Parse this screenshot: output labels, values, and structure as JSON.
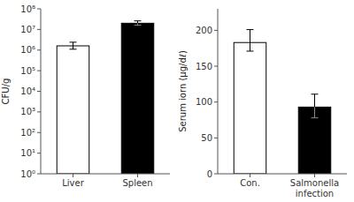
{
  "chart_data": [
    {
      "type": "bar",
      "categories": [
        "Liver",
        "Spleen"
      ],
      "values": [
        1600000,
        20000000
      ],
      "errors_low": [
        500000,
        4000000
      ],
      "errors_high": [
        800000,
        6000000
      ],
      "colors": [
        "white",
        "black"
      ],
      "ylabel": "CFU/g",
      "log": "y",
      "ylim": [
        1.0,
        100000000.0
      ],
      "yticks": [
        {
          "value": 1,
          "label": "10⁰"
        },
        {
          "value": 10,
          "label": "10¹"
        },
        {
          "value": 100,
          "label": "10²"
        },
        {
          "value": 1000,
          "label": "10³"
        },
        {
          "value": 10000,
          "label": "10⁴"
        },
        {
          "value": 100000,
          "label": "10⁵"
        },
        {
          "value": 1000000,
          "label": "10⁶"
        },
        {
          "value": 10000000,
          "label": "10⁷"
        },
        {
          "value": 100000000,
          "label": "10⁸"
        }
      ]
    },
    {
      "type": "bar",
      "categories": [
        "Con.",
        "Salmonella\ninfection"
      ],
      "values": [
        183,
        93
      ],
      "errors_low": [
        12,
        15
      ],
      "errors_high": [
        18,
        18
      ],
      "colors": [
        "white",
        "black"
      ],
      "ylabel": "Serum iorn (μg/dℓ)",
      "ylim": [
        0,
        230
      ],
      "yticks": [
        0,
        50,
        100,
        150,
        200
      ]
    }
  ]
}
